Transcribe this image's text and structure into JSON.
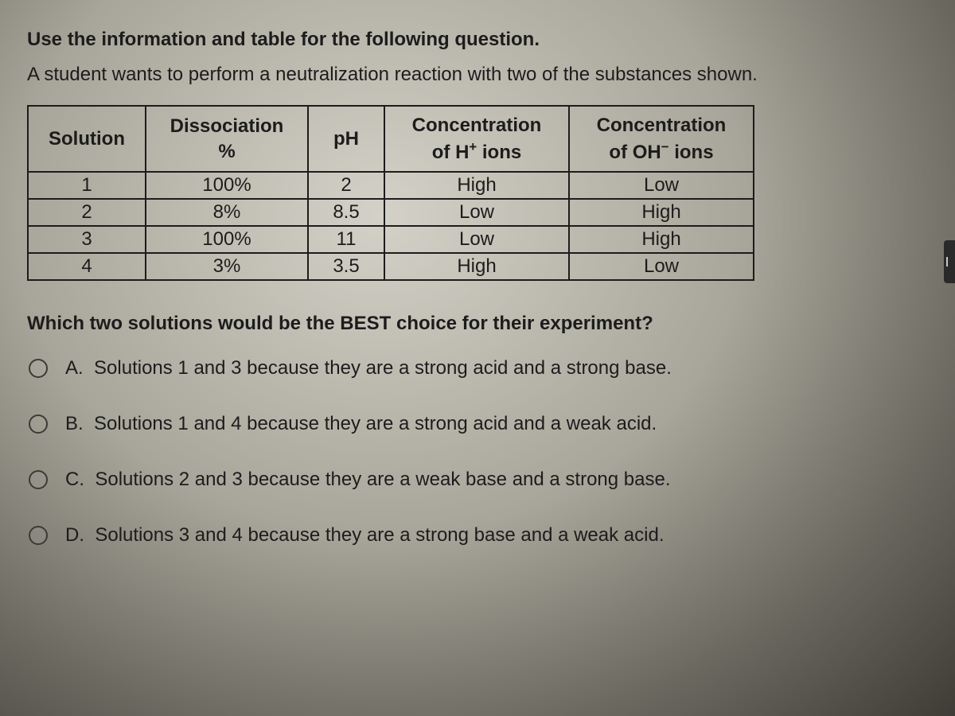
{
  "heading": "Use the information and table for the following question.",
  "sub": "A student wants to perform a neutralization reaction with two of the substances shown.",
  "table": {
    "columns": {
      "solution": "Solution",
      "dissociation_l1": "Dissociation",
      "dissociation_l2": "%",
      "ph": "pH",
      "h_l1": "Concentration",
      "h_l2_pre": "of H",
      "h_l2_sup": "+",
      "h_l2_post": " ions",
      "oh_l1": "Concentration",
      "oh_l2_pre": "of OH",
      "oh_l2_sup": "−",
      "oh_l2_post": " ions"
    },
    "rows": [
      {
        "solution": "1",
        "dissociation": "100%",
        "ph": "2",
        "h": "High",
        "oh": "Low"
      },
      {
        "solution": "2",
        "dissociation": "8%",
        "ph": "8.5",
        "h": "Low",
        "oh": "High"
      },
      {
        "solution": "3",
        "dissociation": "100%",
        "ph": "11",
        "h": "Low",
        "oh": "High"
      },
      {
        "solution": "4",
        "dissociation": "3%",
        "ph": "3.5",
        "h": "High",
        "oh": "Low"
      }
    ]
  },
  "question": "Which two solutions would be the BEST choice for their experiment?",
  "options": {
    "a": {
      "letter": "A.",
      "text": "Solutions 1 and 3 because they are a strong acid and a strong base."
    },
    "b": {
      "letter": "B.",
      "text": "Solutions 1 and 4 because they are a strong acid and a weak acid."
    },
    "c": {
      "letter": "C.",
      "text": "Solutions 2 and 3 because they are a weak base and a strong base."
    },
    "d": {
      "letter": "D.",
      "text": "Solutions 3 and 4 because they are a strong base and a weak acid."
    }
  },
  "colors": {
    "text": "#1c1c1c",
    "border": "#1c1c1c"
  }
}
